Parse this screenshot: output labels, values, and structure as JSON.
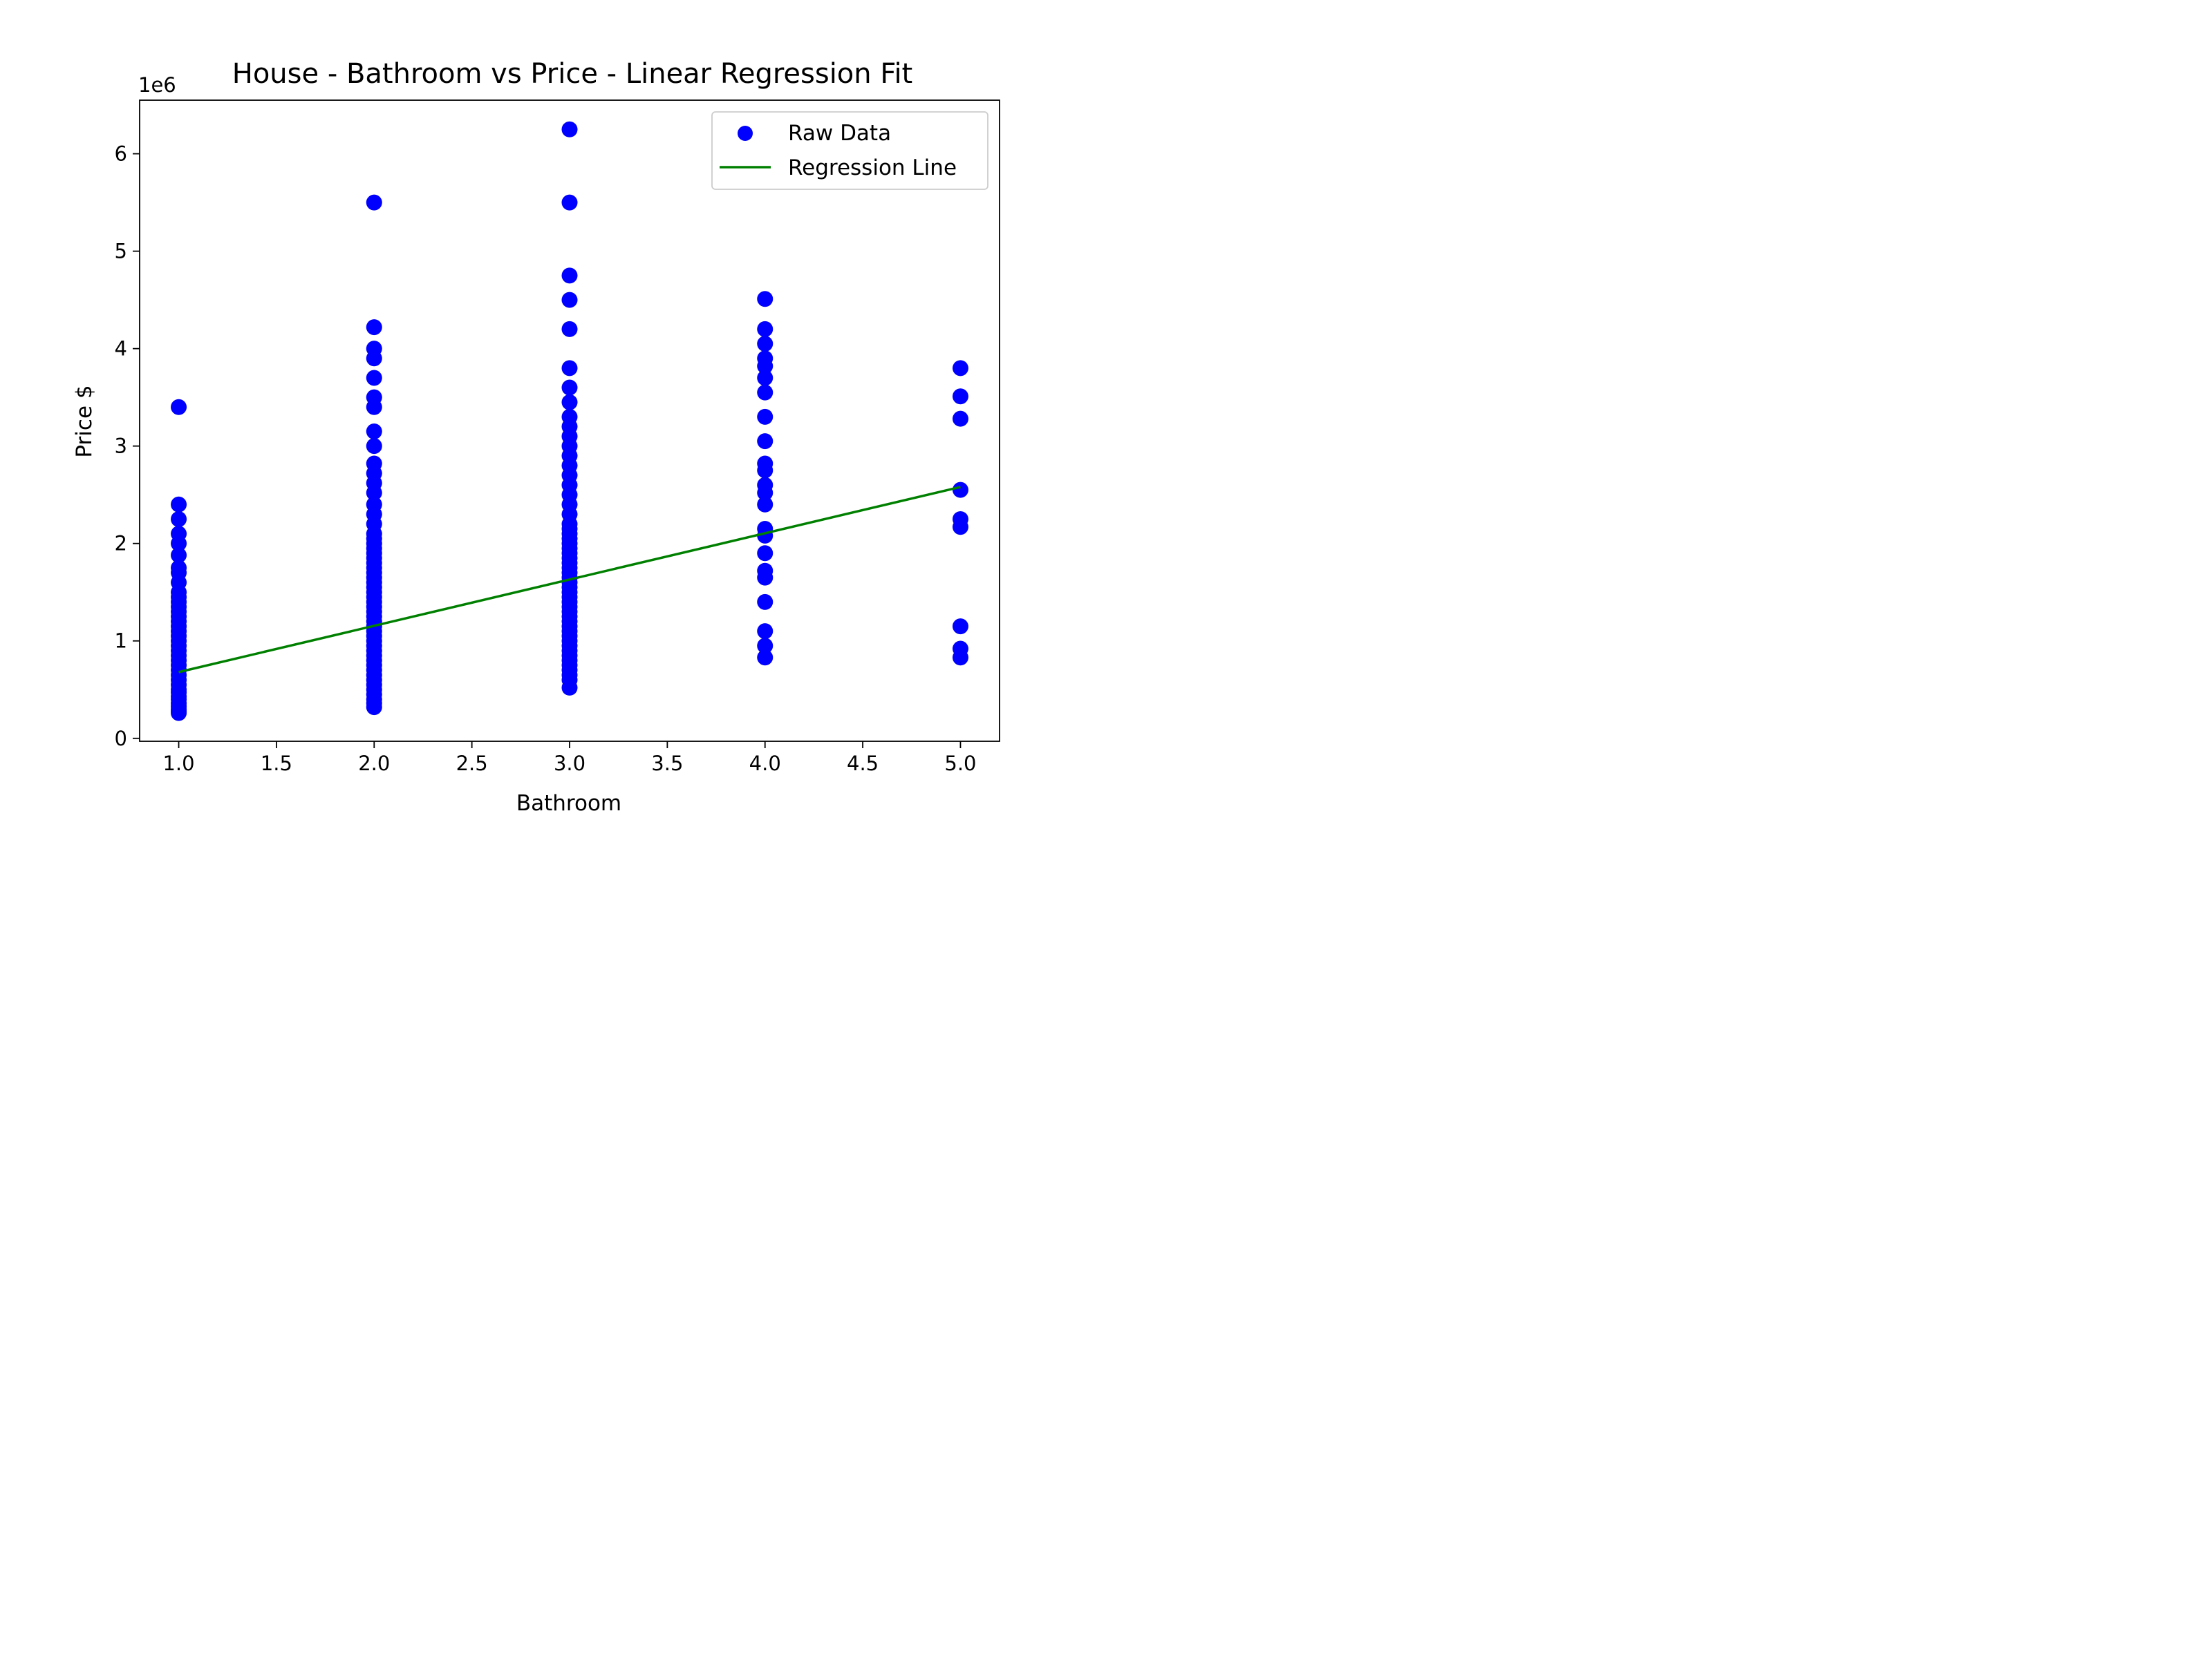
{
  "chart_data": {
    "type": "scatter",
    "title": "House - Bathroom vs Price - Linear Regression Fit",
    "xlabel": "Bathroom",
    "ylabel": "Price $",
    "y_offset_label": "1e6",
    "xlim": [
      0.8,
      5.2
    ],
    "ylim": [
      -0.03,
      6.55
    ],
    "x_ticks": [
      1.0,
      1.5,
      2.0,
      2.5,
      3.0,
      3.5,
      4.0,
      4.5,
      5.0
    ],
    "x_tick_labels": [
      "1.0",
      "1.5",
      "2.0",
      "2.5",
      "3.0",
      "3.5",
      "4.0",
      "4.5",
      "5.0"
    ],
    "y_ticks": [
      0,
      1,
      2,
      3,
      4,
      5,
      6
    ],
    "y_tick_labels": [
      "0",
      "1",
      "2",
      "3",
      "4",
      "5",
      "6"
    ],
    "grid": false,
    "legend_position": "top-right",
    "series": [
      {
        "name": "Raw Data",
        "kind": "scatter",
        "color": "#0000ff",
        "points": [
          [
            1,
            0.26
          ],
          [
            1,
            0.28
          ],
          [
            1,
            0.3
          ],
          [
            1,
            0.33
          ],
          [
            1,
            0.36
          ],
          [
            1,
            0.4
          ],
          [
            1,
            0.43
          ],
          [
            1,
            0.47
          ],
          [
            1,
            0.5
          ],
          [
            1,
            0.55
          ],
          [
            1,
            0.6
          ],
          [
            1,
            0.65
          ],
          [
            1,
            0.7
          ],
          [
            1,
            0.75
          ],
          [
            1,
            0.8
          ],
          [
            1,
            0.85
          ],
          [
            1,
            0.9
          ],
          [
            1,
            0.95
          ],
          [
            1,
            1.0
          ],
          [
            1,
            1.05
          ],
          [
            1,
            1.1
          ],
          [
            1,
            1.15
          ],
          [
            1,
            1.2
          ],
          [
            1,
            1.25
          ],
          [
            1,
            1.3
          ],
          [
            1,
            1.35
          ],
          [
            1,
            1.4
          ],
          [
            1,
            1.45
          ],
          [
            1,
            1.5
          ],
          [
            1,
            1.6
          ],
          [
            1,
            1.7
          ],
          [
            1,
            1.75
          ],
          [
            1,
            1.88
          ],
          [
            1,
            2.0
          ],
          [
            1,
            2.1
          ],
          [
            1,
            2.25
          ],
          [
            1,
            2.4
          ],
          [
            1,
            3.4
          ],
          [
            2,
            0.32
          ],
          [
            2,
            0.36
          ],
          [
            2,
            0.4
          ],
          [
            2,
            0.45
          ],
          [
            2,
            0.5
          ],
          [
            2,
            0.55
          ],
          [
            2,
            0.6
          ],
          [
            2,
            0.65
          ],
          [
            2,
            0.7
          ],
          [
            2,
            0.75
          ],
          [
            2,
            0.8
          ],
          [
            2,
            0.85
          ],
          [
            2,
            0.9
          ],
          [
            2,
            0.95
          ],
          [
            2,
            1.0
          ],
          [
            2,
            1.05
          ],
          [
            2,
            1.1
          ],
          [
            2,
            1.15
          ],
          [
            2,
            1.2
          ],
          [
            2,
            1.25
          ],
          [
            2,
            1.3
          ],
          [
            2,
            1.35
          ],
          [
            2,
            1.4
          ],
          [
            2,
            1.45
          ],
          [
            2,
            1.5
          ],
          [
            2,
            1.55
          ],
          [
            2,
            1.6
          ],
          [
            2,
            1.65
          ],
          [
            2,
            1.7
          ],
          [
            2,
            1.75
          ],
          [
            2,
            1.8
          ],
          [
            2,
            1.85
          ],
          [
            2,
            1.9
          ],
          [
            2,
            1.95
          ],
          [
            2,
            2.0
          ],
          [
            2,
            2.05
          ],
          [
            2,
            2.1
          ],
          [
            2,
            2.2
          ],
          [
            2,
            2.3
          ],
          [
            2,
            2.4
          ],
          [
            2,
            2.52
          ],
          [
            2,
            2.62
          ],
          [
            2,
            2.72
          ],
          [
            2,
            2.82
          ],
          [
            2,
            3.0
          ],
          [
            2,
            3.15
          ],
          [
            2,
            3.4
          ],
          [
            2,
            3.5
          ],
          [
            2,
            3.7
          ],
          [
            2,
            3.9
          ],
          [
            2,
            4.0
          ],
          [
            2,
            4.22
          ],
          [
            2,
            5.5
          ],
          [
            3,
            0.52
          ],
          [
            3,
            0.6
          ],
          [
            3,
            0.65
          ],
          [
            3,
            0.7
          ],
          [
            3,
            0.75
          ],
          [
            3,
            0.8
          ],
          [
            3,
            0.85
          ],
          [
            3,
            0.9
          ],
          [
            3,
            0.95
          ],
          [
            3,
            1.0
          ],
          [
            3,
            1.05
          ],
          [
            3,
            1.1
          ],
          [
            3,
            1.15
          ],
          [
            3,
            1.2
          ],
          [
            3,
            1.25
          ],
          [
            3,
            1.3
          ],
          [
            3,
            1.35
          ],
          [
            3,
            1.4
          ],
          [
            3,
            1.45
          ],
          [
            3,
            1.5
          ],
          [
            3,
            1.55
          ],
          [
            3,
            1.6
          ],
          [
            3,
            1.65
          ],
          [
            3,
            1.7
          ],
          [
            3,
            1.75
          ],
          [
            3,
            1.8
          ],
          [
            3,
            1.85
          ],
          [
            3,
            1.9
          ],
          [
            3,
            1.95
          ],
          [
            3,
            2.0
          ],
          [
            3,
            2.05
          ],
          [
            3,
            2.1
          ],
          [
            3,
            2.15
          ],
          [
            3,
            2.2
          ],
          [
            3,
            2.3
          ],
          [
            3,
            2.4
          ],
          [
            3,
            2.5
          ],
          [
            3,
            2.6
          ],
          [
            3,
            2.7
          ],
          [
            3,
            2.8
          ],
          [
            3,
            2.9
          ],
          [
            3,
            3.0
          ],
          [
            3,
            3.1
          ],
          [
            3,
            3.2
          ],
          [
            3,
            3.3
          ],
          [
            3,
            3.45
          ],
          [
            3,
            3.6
          ],
          [
            3,
            3.8
          ],
          [
            3,
            4.2
          ],
          [
            3,
            4.5
          ],
          [
            3,
            4.75
          ],
          [
            3,
            5.5
          ],
          [
            3,
            6.25
          ],
          [
            4,
            0.83
          ],
          [
            4,
            0.95
          ],
          [
            4,
            1.1
          ],
          [
            4,
            1.4
          ],
          [
            4,
            1.65
          ],
          [
            4,
            1.72
          ],
          [
            4,
            1.9
          ],
          [
            4,
            2.08
          ],
          [
            4,
            2.15
          ],
          [
            4,
            2.4
          ],
          [
            4,
            2.52
          ],
          [
            4,
            2.6
          ],
          [
            4,
            2.75
          ],
          [
            4,
            2.82
          ],
          [
            4,
            3.05
          ],
          [
            4,
            3.3
          ],
          [
            4,
            3.55
          ],
          [
            4,
            3.7
          ],
          [
            4,
            3.82
          ],
          [
            4,
            3.9
          ],
          [
            4,
            4.05
          ],
          [
            4,
            4.2
          ],
          [
            4,
            4.51
          ],
          [
            5,
            0.83
          ],
          [
            5,
            0.92
          ],
          [
            5,
            1.15
          ],
          [
            5,
            2.17
          ],
          [
            5,
            2.25
          ],
          [
            5,
            2.55
          ],
          [
            5,
            3.28
          ],
          [
            5,
            3.51
          ],
          [
            5,
            3.8
          ]
        ]
      },
      {
        "name": "Regression Line",
        "kind": "line",
        "color": "#008000",
        "points": [
          [
            1,
            0.68
          ],
          [
            5,
            2.58
          ]
        ]
      }
    ]
  }
}
